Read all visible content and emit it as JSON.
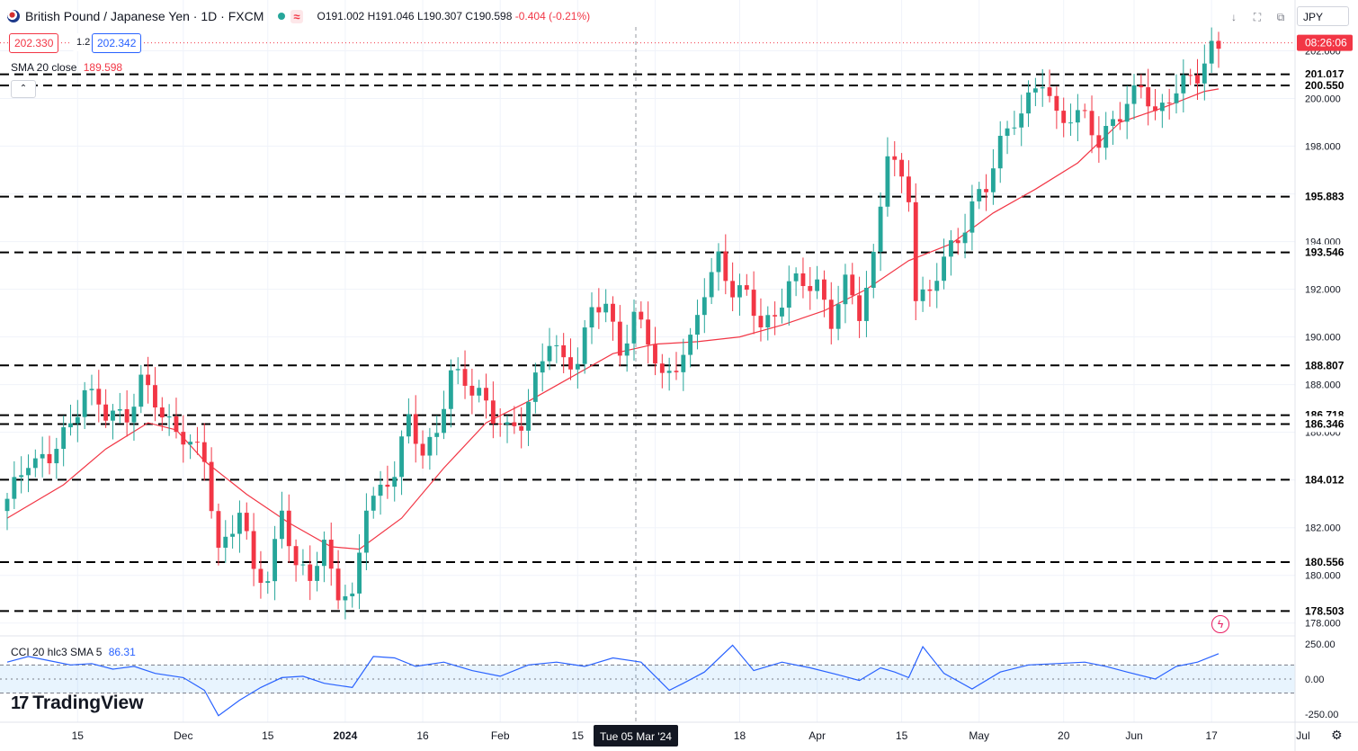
{
  "header": {
    "title": "British Pound / Japanese Yen · 1D · FXCM",
    "wave": "≈",
    "open": "O191.002",
    "high": "H191.046",
    "low": "L190.307",
    "close": "C190.598",
    "change": "-0.404 (-0.21%)"
  },
  "quote": {
    "bid": "202.330",
    "spread": "1.2",
    "ask": "202.342"
  },
  "sma_legend": {
    "label": "SMA 20 close",
    "value": "189.598"
  },
  "cci_legend": {
    "label": "CCI 20 hlc3 SMA 5",
    "value": "86.31"
  },
  "brand": {
    "mark": "17",
    "name": "TradingView"
  },
  "toolbar": {
    "currency": "JPY",
    "down_arrow": "↓",
    "fullscreen": "⛶",
    "snapshot": "⧉"
  },
  "countdown": "08:26:06",
  "crosshair_date": "Tue 05 Mar '24",
  "colors": {
    "up": "#26a69a",
    "down": "#f23645",
    "sma": "#f23645",
    "cci": "#2962ff",
    "accent": "#2962ff"
  },
  "icons": {
    "flag": "gbp-jpy-flag-icon",
    "gear": "gear-icon",
    "flash": "flash-icon"
  },
  "chart_data": [
    {
      "type": "candlestick",
      "title": "British Pound / Japanese Yen · 1D · FXCM",
      "ylim": [
        177.5,
        203.0
      ],
      "y_ticks": [
        "178.000",
        "180.000",
        "182.000",
        "184.000",
        "186.000",
        "188.000",
        "190.000",
        "192.000",
        "194.000",
        "196.000",
        "198.000",
        "200.000",
        "202.000"
      ],
      "x_ticks": [
        "15",
        "Dec",
        "15",
        "2024",
        "16",
        "Feb",
        "15",
        "Mar",
        "18",
        "Apr",
        "15",
        "May",
        "20",
        "Jun",
        "17",
        "Jul"
      ],
      "levels": [
        {
          "value": 201.017,
          "label": "201.017"
        },
        {
          "value": 200.55,
          "label": "200.550"
        },
        {
          "value": 195.883,
          "label": "195.883"
        },
        {
          "value": 193.546,
          "label": "193.546"
        },
        {
          "value": 188.807,
          "label": "188.807"
        },
        {
          "value": 186.718,
          "label": "186.718"
        },
        {
          "value": 186.346,
          "label": "186.346"
        },
        {
          "value": 184.012,
          "label": "184.012"
        },
        {
          "value": 180.556,
          "label": "180.556"
        },
        {
          "value": 178.503,
          "label": "178.503"
        }
      ],
      "current_price": 202.335,
      "anchors": [
        [
          0,
          183.0
        ],
        [
          3,
          185.0
        ],
        [
          6,
          184.8
        ],
        [
          9,
          186.3
        ],
        [
          11,
          188.0
        ],
        [
          14,
          186.6
        ],
        [
          17,
          186.8
        ],
        [
          19,
          188.2
        ],
        [
          22,
          186.6
        ],
        [
          25,
          186.0
        ],
        [
          28,
          184.7
        ],
        [
          30,
          181.0
        ],
        [
          33,
          182.8
        ],
        [
          35,
          180.0
        ],
        [
          37,
          179.8
        ],
        [
          39,
          183.0
        ],
        [
          41,
          180.1
        ],
        [
          43,
          179.9
        ],
        [
          45,
          181.4
        ],
        [
          47,
          179.3
        ],
        [
          49,
          178.7
        ],
        [
          51,
          183.1
        ],
        [
          53,
          183.7
        ],
        [
          55,
          184.2
        ],
        [
          57,
          186.5
        ],
        [
          59,
          185.3
        ],
        [
          61,
          186.0
        ],
        [
          63,
          188.3
        ],
        [
          65,
          188.2
        ],
        [
          67,
          187.8
        ],
        [
          69,
          186.5
        ],
        [
          71,
          186.0
        ],
        [
          73,
          186.6
        ],
        [
          75,
          188.2
        ],
        [
          77,
          189.7
        ],
        [
          79,
          189.0
        ],
        [
          81,
          189.2
        ],
        [
          83,
          191.0
        ],
        [
          85,
          191.3
        ],
        [
          87,
          189.5
        ],
        [
          89,
          190.9
        ],
        [
          91,
          189.7
        ],
        [
          93,
          188.3
        ],
        [
          95,
          189.0
        ],
        [
          97,
          189.6
        ],
        [
          99,
          191.9
        ],
        [
          101,
          193.5
        ],
        [
          103,
          191.9
        ],
        [
          105,
          191.6
        ],
        [
          107,
          190.6
        ],
        [
          109,
          191.0
        ],
        [
          111,
          192.1
        ],
        [
          113,
          192.2
        ],
        [
          115,
          192.4
        ],
        [
          117,
          190.6
        ],
        [
          119,
          192.1
        ],
        [
          121,
          191.1
        ],
        [
          123,
          193.4
        ],
        [
          125,
          197.7
        ],
        [
          127,
          196.4
        ],
        [
          128,
          196.0
        ],
        [
          129,
          191.9
        ],
        [
          131,
          191.8
        ],
        [
          133,
          193.2
        ],
        [
          135,
          194.1
        ],
        [
          137,
          195.7
        ],
        [
          139,
          196.1
        ],
        [
          141,
          198.1
        ],
        [
          143,
          199.3
        ],
        [
          145,
          199.9
        ],
        [
          147,
          200.6
        ],
        [
          149,
          199.3
        ],
        [
          151,
          199.4
        ],
        [
          153,
          199.1
        ],
        [
          155,
          198.0
        ],
        [
          157,
          199.3
        ],
        [
          159,
          199.7
        ],
        [
          161,
          200.4
        ],
        [
          163,
          199.4
        ],
        [
          165,
          200.2
        ],
        [
          167,
          200.5
        ],
        [
          169,
          200.9
        ],
        [
          171,
          202.3
        ],
        [
          172,
          202.3
        ]
      ],
      "sma20_points": [
        [
          0,
          182.4
        ],
        [
          8,
          183.8
        ],
        [
          14,
          185.3
        ],
        [
          20,
          186.4
        ],
        [
          24,
          186.1
        ],
        [
          28,
          184.8
        ],
        [
          34,
          183.4
        ],
        [
          40,
          182.2
        ],
        [
          46,
          181.2
        ],
        [
          50,
          181.1
        ],
        [
          56,
          182.4
        ],
        [
          62,
          184.5
        ],
        [
          68,
          186.4
        ],
        [
          74,
          187.3
        ],
        [
          80,
          188.3
        ],
        [
          86,
          189.3
        ],
        [
          92,
          189.7
        ],
        [
          98,
          189.8
        ],
        [
          104,
          190.0
        ],
        [
          110,
          190.5
        ],
        [
          116,
          191.1
        ],
        [
          122,
          192.0
        ],
        [
          128,
          193.2
        ],
        [
          134,
          193.9
        ],
        [
          140,
          195.2
        ],
        [
          146,
          196.2
        ],
        [
          152,
          197.3
        ],
        [
          158,
          199.0
        ],
        [
          164,
          199.6
        ],
        [
          170,
          200.3
        ],
        [
          172,
          200.4
        ]
      ]
    },
    {
      "type": "line",
      "title": "CCI 20 hlc3 SMA 5",
      "ylim": [
        -300,
        300
      ],
      "y_ticks": [
        "250.00",
        "0.00",
        "-250.00"
      ],
      "bands": [
        100,
        -100
      ],
      "x": [
        0,
        3,
        6,
        9,
        12,
        15,
        18,
        21,
        25,
        28,
        30,
        33,
        36,
        39,
        42,
        45,
        49,
        52,
        55,
        58,
        62,
        66,
        70,
        74,
        78,
        82,
        86,
        90,
        94,
        96,
        99,
        103,
        106,
        110,
        114,
        118,
        121,
        124,
        126,
        128,
        130,
        133,
        137,
        141,
        145,
        149,
        153,
        156,
        159,
        163,
        166,
        169,
        172
      ],
      "values": [
        120,
        160,
        130,
        100,
        110,
        70,
        90,
        40,
        10,
        -80,
        -260,
        -150,
        -60,
        10,
        20,
        -30,
        -60,
        160,
        150,
        90,
        120,
        60,
        20,
        100,
        120,
        90,
        150,
        120,
        -80,
        -30,
        50,
        240,
        60,
        120,
        80,
        30,
        -10,
        80,
        50,
        10,
        230,
        40,
        -70,
        50,
        100,
        110,
        120,
        90,
        50,
        0,
        90,
        120,
        180
      ]
    }
  ]
}
